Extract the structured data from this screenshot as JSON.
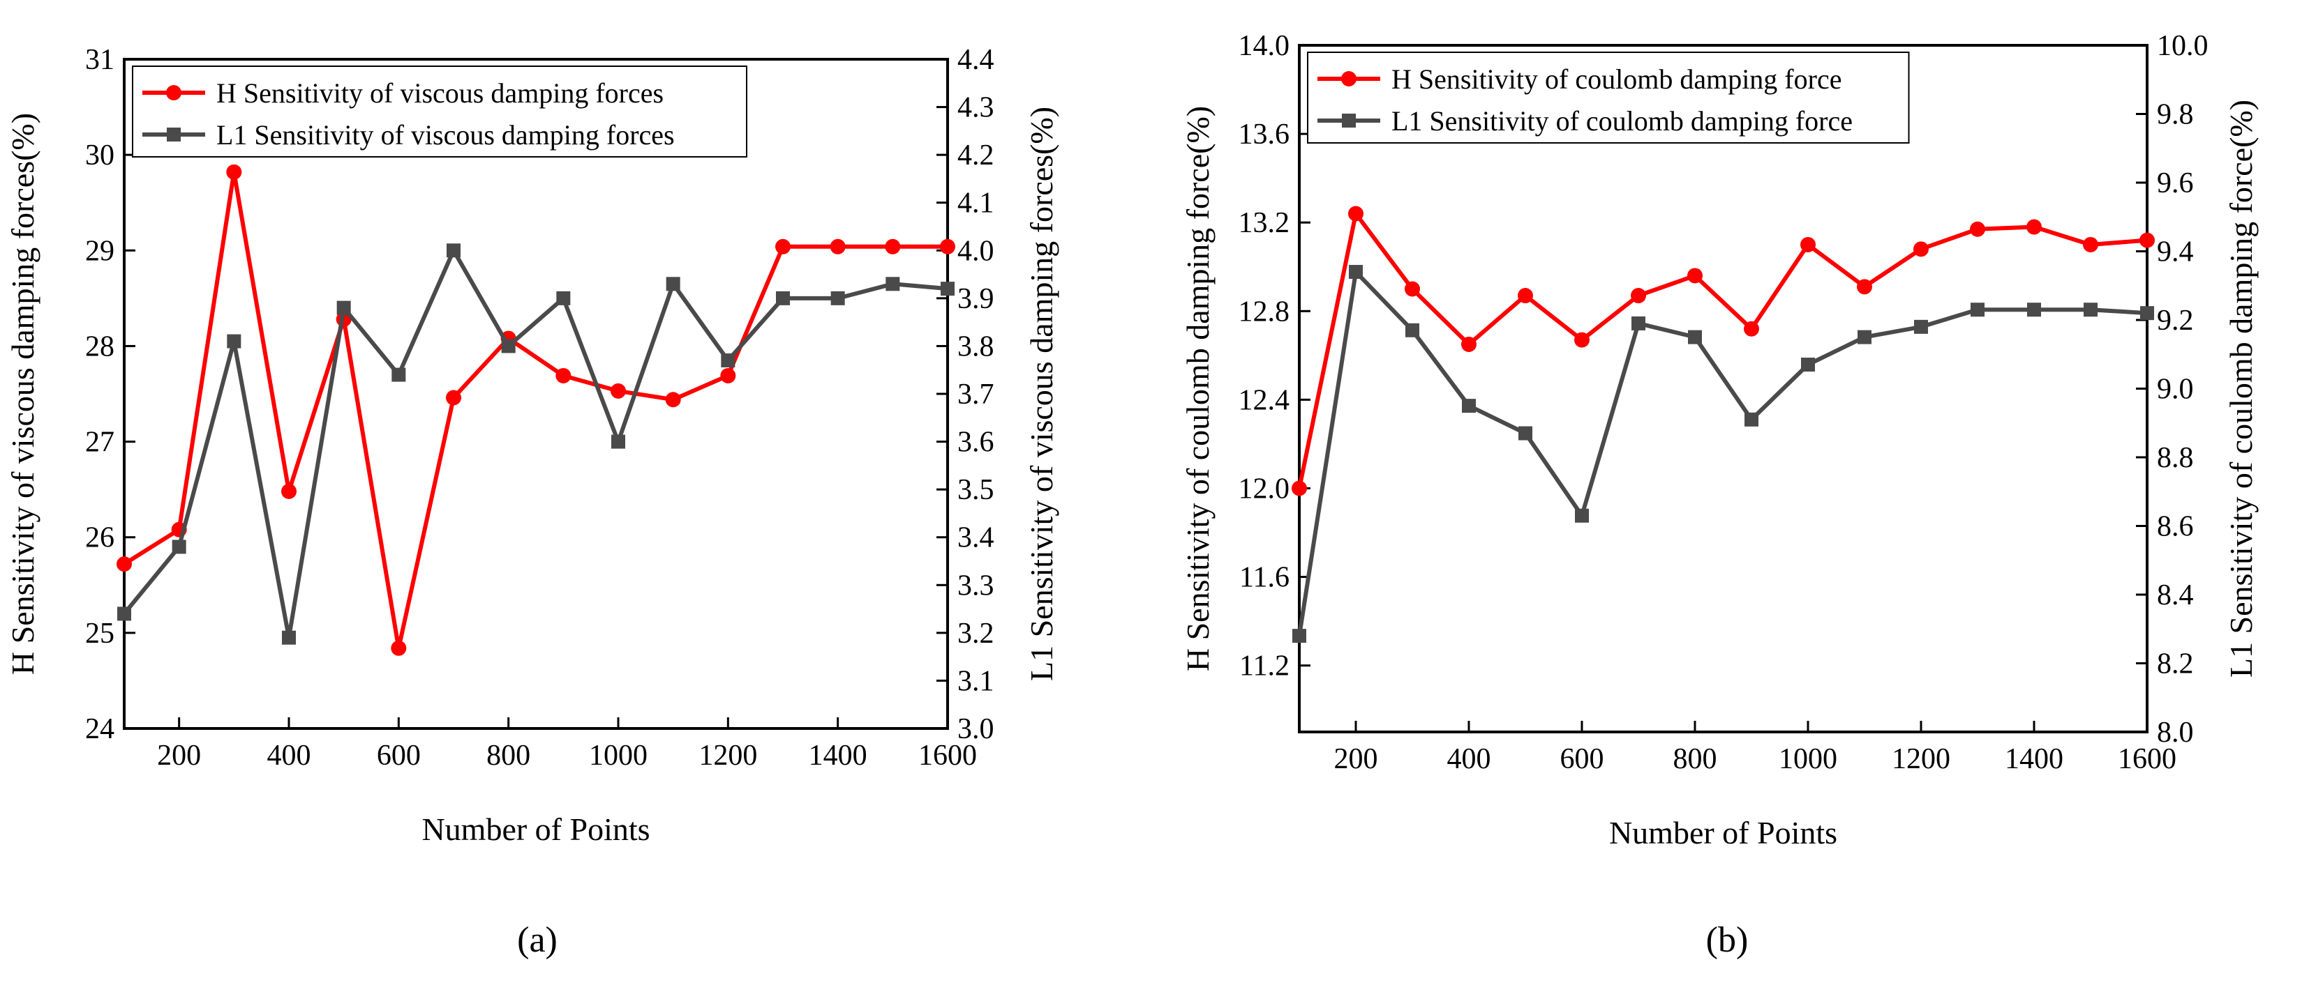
{
  "figure": {
    "panel_labels": [
      "(a)",
      "(b)"
    ]
  },
  "chart_data": [
    {
      "type": "line",
      "panel": "(a)",
      "xlabel": "Number of Points",
      "ylabel_left": "H Sensitivity of viscous damping forces(%)",
      "ylabel_right": "L1 Sensitivity of viscous damping forces(%)",
      "x": [
        100,
        200,
        300,
        400,
        500,
        600,
        700,
        800,
        900,
        1000,
        1100,
        1200,
        1300,
        1400,
        1500,
        1600
      ],
      "xlim": [
        100,
        1600
      ],
      "xticks": [
        "200",
        "400",
        "600",
        "800",
        "1000",
        "1200",
        "1400",
        "1600"
      ],
      "xtick_values": [
        200,
        400,
        600,
        800,
        1000,
        1200,
        1400,
        1600
      ],
      "ylim_left": [
        24,
        31
      ],
      "yticks_left": [
        "24",
        "25",
        "26",
        "27",
        "28",
        "29",
        "30",
        "31"
      ],
      "ylim_right": [
        3.0,
        4.4
      ],
      "yticks_right": [
        "3.0",
        "3.1",
        "3.2",
        "3.3",
        "3.4",
        "3.5",
        "3.6",
        "3.7",
        "3.8",
        "3.9",
        "4.0",
        "4.1",
        "4.2",
        "4.3",
        "4.4"
      ],
      "legend_position": "top-left",
      "series": [
        {
          "name": "H Sensitivity of viscous damping forces",
          "axis": "left",
          "color": "#ff0000",
          "marker": "circle",
          "values": [
            25.72,
            26.08,
            29.82,
            26.48,
            28.28,
            24.84,
            27.46,
            28.08,
            27.69,
            27.53,
            27.44,
            27.69,
            29.04,
            29.04,
            29.04,
            29.04
          ]
        },
        {
          "name": "L1 Sensitivity of viscous damping forces",
          "axis": "right",
          "color": "#4a4a4a",
          "marker": "square",
          "values": [
            3.24,
            3.38,
            3.81,
            3.19,
            3.88,
            3.74,
            4.0,
            3.8,
            3.9,
            3.6,
            3.93,
            3.77,
            3.9,
            3.9,
            3.93,
            3.92
          ]
        }
      ]
    },
    {
      "type": "line",
      "panel": "(b)",
      "xlabel": "Number of Points",
      "ylabel_left": "H Sensitivity of coulomb damping force(%)",
      "ylabel_right": "L1 Sensitivity of coulomb damping force(%)",
      "x": [
        100,
        200,
        300,
        400,
        500,
        600,
        700,
        800,
        900,
        1000,
        1100,
        1200,
        1300,
        1400,
        1500,
        1600
      ],
      "xlim": [
        100,
        1600
      ],
      "xticks": [
        "200",
        "400",
        "600",
        "800",
        "1000",
        "1200",
        "1400",
        "1600"
      ],
      "xtick_values": [
        200,
        400,
        600,
        800,
        1000,
        1200,
        1400,
        1600
      ],
      "ylim_left": [
        10.9,
        14.0
      ],
      "yticks_left": [
        "11.2",
        "11.6",
        "12.0",
        "12.4",
        "12.8",
        "13.2",
        "13.6",
        "14.0"
      ],
      "ytick_values_left": [
        11.2,
        11.6,
        12.0,
        12.4,
        12.8,
        13.2,
        13.6,
        14.0
      ],
      "ylim_right": [
        8.0,
        10.0
      ],
      "yticks_right": [
        "8.0",
        "8.2",
        "8.4",
        "8.6",
        "8.8",
        "9.0",
        "9.2",
        "9.4",
        "9.6",
        "9.8",
        "10.0"
      ],
      "legend_position": "top-left",
      "series": [
        {
          "name": "H Sensitivity of coulomb damping force",
          "axis": "left",
          "color": "#ff0000",
          "marker": "circle",
          "values": [
            12.0,
            13.24,
            12.9,
            12.65,
            12.87,
            12.67,
            12.87,
            12.96,
            12.72,
            13.1,
            12.91,
            13.08,
            13.17,
            13.18,
            13.1,
            13.12
          ]
        },
        {
          "name": "L1 Sensitivity of coulomb damping force",
          "axis": "right",
          "color": "#4a4a4a",
          "marker": "square",
          "values": [
            8.28,
            9.34,
            9.17,
            8.95,
            8.87,
            8.63,
            9.19,
            9.15,
            8.91,
            9.07,
            9.15,
            9.18,
            9.23,
            9.23,
            9.23,
            9.22
          ]
        }
      ]
    }
  ]
}
